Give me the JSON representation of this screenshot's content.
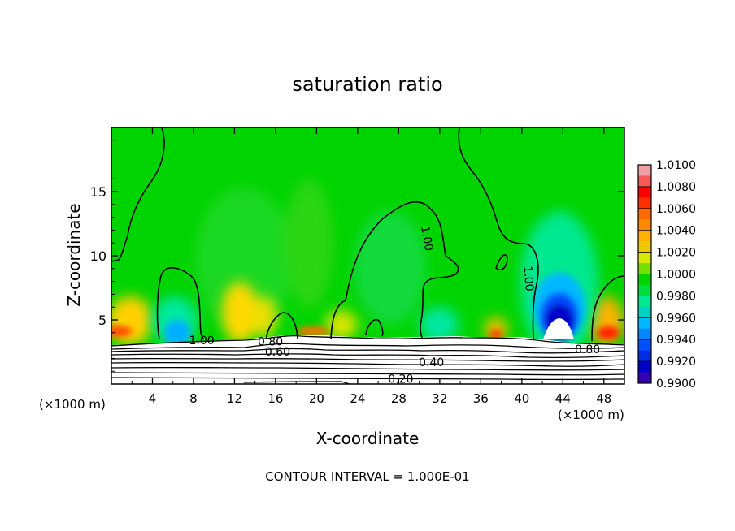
{
  "chart_data": {
    "type": "heatmap",
    "title": "saturation ratio",
    "footer": "CONTOUR INTERVAL = 1.000E-01",
    "xlabel": "X-coordinate",
    "ylabel": "Z-coordinate",
    "x_unit_left": "(×1000 m)",
    "x_unit_right": "(×1000 m)",
    "xlim": [
      0,
      50
    ],
    "ylim": [
      0,
      20
    ],
    "x_ticks": [
      4,
      8,
      12,
      16,
      20,
      24,
      28,
      32,
      36,
      40,
      44,
      48
    ],
    "y_ticks": [
      5,
      10,
      15
    ],
    "colorbar": {
      "levels": [
        "1.0100",
        "1.0080",
        "1.0060",
        "1.0040",
        "1.0020",
        "1.0000",
        "0.9980",
        "0.9960",
        "0.9940",
        "0.9920",
        "0.9900"
      ],
      "colors": [
        "#f0a0a0",
        "#ff0000",
        "#ff6a00",
        "#ffb000",
        "#d8e800",
        "#00d400",
        "#00e890",
        "#00b8ff",
        "#0050ff",
        "#0000c8",
        "#7000a0"
      ]
    },
    "contour_labels": [
      {
        "text": "1.00",
        "x": 8.8,
        "z": 3.1
      },
      {
        "text": "0.80",
        "x": 15.5,
        "z": 3.0
      },
      {
        "text": "0.60",
        "x": 16.2,
        "z": 2.2
      },
      {
        "text": "1.00",
        "x": 30.4,
        "z": 11.3
      },
      {
        "text": "1.00",
        "x": 40.3,
        "z": 8.2
      },
      {
        "text": "0.40",
        "x": 31.2,
        "z": 1.4
      },
      {
        "text": "0.20",
        "x": 28.2,
        "z": 0.1
      },
      {
        "text": "0.80",
        "x": 46.4,
        "z": 2.4
      }
    ]
  }
}
